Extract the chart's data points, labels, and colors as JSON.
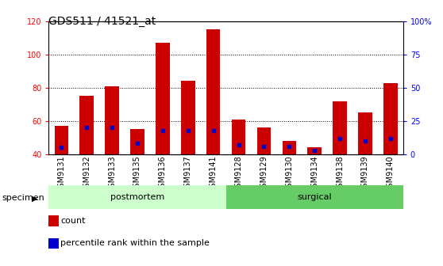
{
  "title": "GDS511 / 41521_at",
  "samples": [
    "GSM9131",
    "GSM9132",
    "GSM9133",
    "GSM9135",
    "GSM9136",
    "GSM9137",
    "GSM9141",
    "GSM9128",
    "GSM9129",
    "GSM9130",
    "GSM9134",
    "GSM9138",
    "GSM9139",
    "GSM9140"
  ],
  "counts": [
    57,
    75,
    81,
    55,
    107,
    84,
    115,
    61,
    56,
    48,
    44,
    72,
    65,
    83
  ],
  "percentile_ranks": [
    5,
    20,
    20,
    8,
    18,
    18,
    18,
    7,
    6,
    6,
    3,
    12,
    10,
    12
  ],
  "groups": [
    {
      "label": "postmortem",
      "start": 0,
      "end": 7,
      "color": "#ccffcc"
    },
    {
      "label": "surgical",
      "start": 7,
      "end": 14,
      "color": "#66cc66"
    }
  ],
  "bar_color": "#cc0000",
  "percentile_color": "#0000cc",
  "ylim_left": [
    40,
    120
  ],
  "ylim_right": [
    0,
    100
  ],
  "yticks_left": [
    40,
    60,
    80,
    100,
    120
  ],
  "yticks_right": [
    0,
    25,
    50,
    75,
    100
  ],
  "ytick_labels_right": [
    "0",
    "25",
    "50",
    "75",
    "100%"
  ],
  "bar_width": 0.55,
  "background_color": "#ffffff",
  "specimen_label": "specimen",
  "legend_count": "count",
  "legend_percentile": "percentile rank within the sample",
  "title_fontsize": 10,
  "tick_fontsize": 7,
  "label_fontsize": 8,
  "group_label_fontsize": 8
}
